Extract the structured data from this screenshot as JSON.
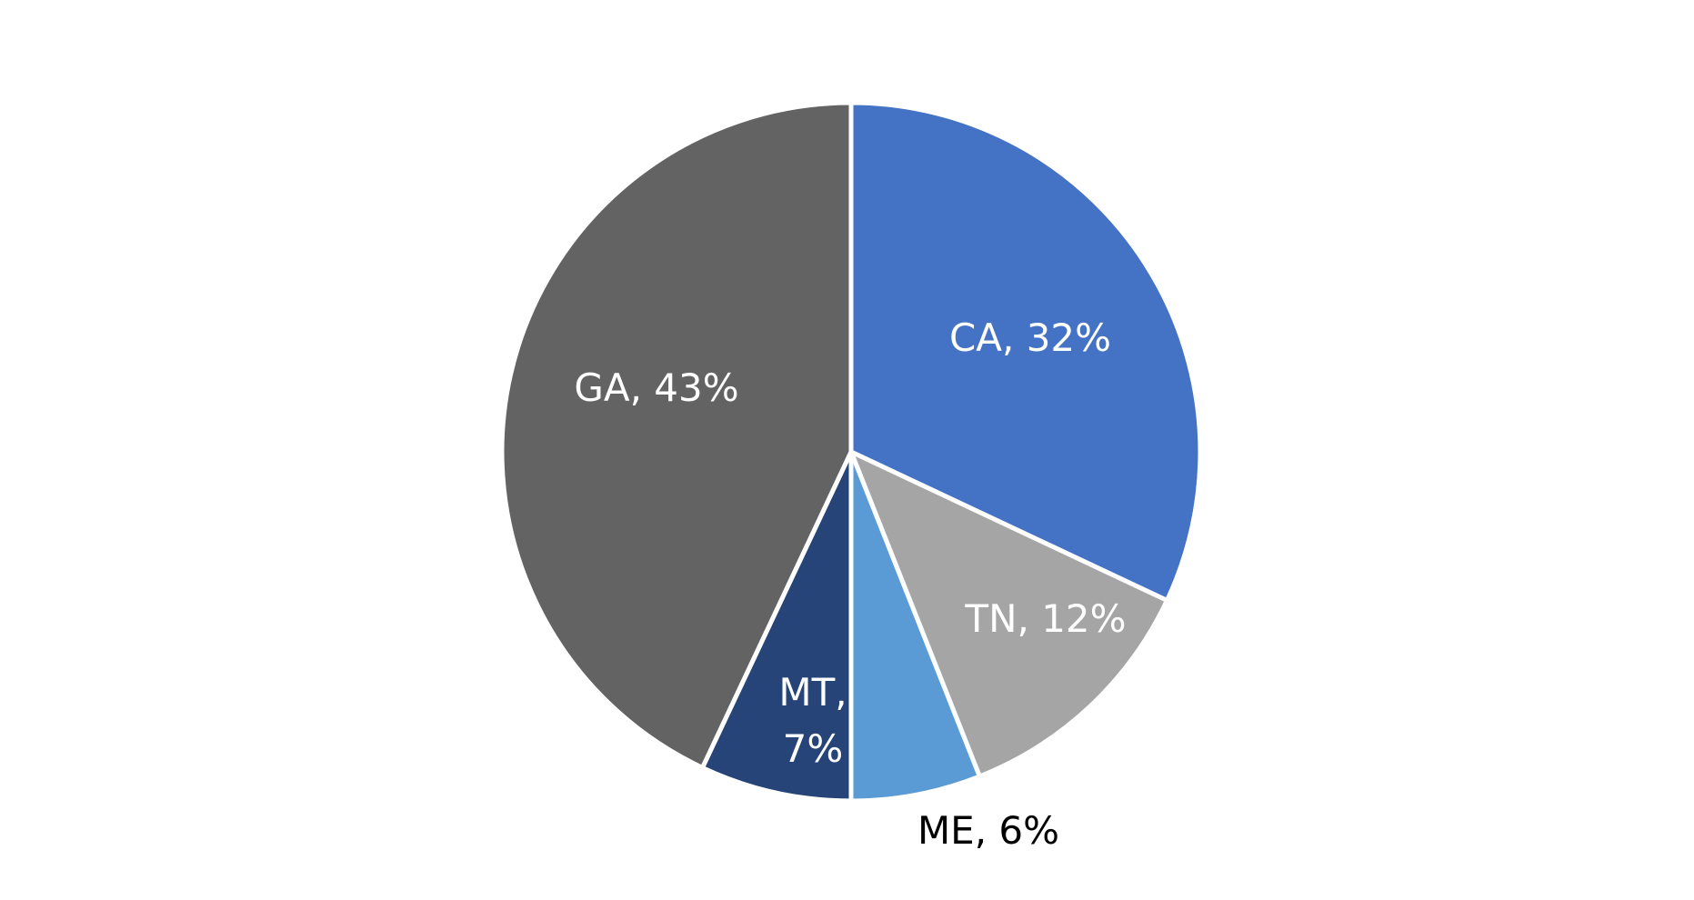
{
  "chart_data": {
    "type": "pie",
    "title": "",
    "legend": "none",
    "slices": [
      {
        "label": "CA",
        "value": 32,
        "percent_label": "32%",
        "text": "CA, 32%",
        "color": "#4472C4",
        "label_color": "#FFFFFF"
      },
      {
        "label": "TN",
        "value": 12,
        "percent_label": "12%",
        "text": "TN, 12%",
        "color": "#A5A5A5",
        "label_color": "#FFFFFF"
      },
      {
        "label": "ME",
        "value": 6,
        "percent_label": "6%",
        "text": "ME, 6%",
        "color": "#5B9BD5",
        "label_color": "#000000"
      },
      {
        "label": "MT",
        "value": 7,
        "percent_label": "7%",
        "text": "MT, 7%",
        "line1": "MT,",
        "line2": "7%",
        "color": "#264478",
        "label_color": "#FFFFFF"
      },
      {
        "label": "GA",
        "value": 43,
        "percent_label": "43%",
        "text": "GA, 43%",
        "color": "#636363",
        "label_color": "#FFFFFF"
      }
    ]
  }
}
